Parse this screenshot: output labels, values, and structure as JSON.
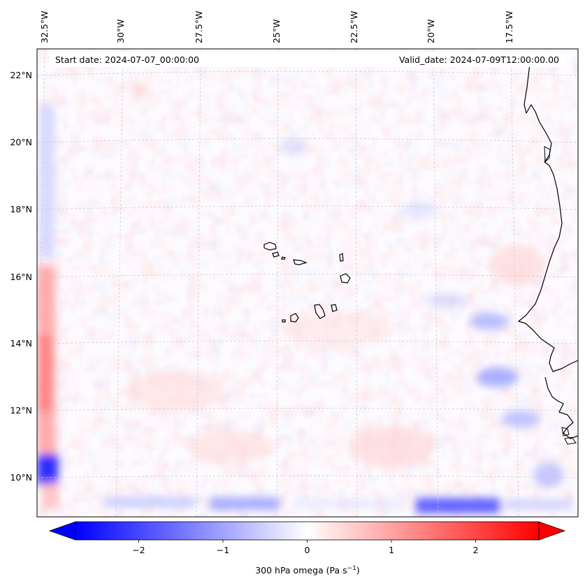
{
  "map": {
    "start_date": "Start date: 2024-07-07_00:00:00",
    "valid_date": "Valid_date: 2024-07-09T12:00:00.00",
    "lon_labels": [
      "32.5°W",
      "30°W",
      "27.5°W",
      "25°W",
      "22.5°W",
      "20°W",
      "17.5°W"
    ],
    "lat_labels": [
      "22°N",
      "20°N",
      "18°N",
      "16°N",
      "14°N",
      "12°N",
      "10°N"
    ],
    "colormap": "bwr",
    "colors": {
      "neg": "#0000ff",
      "zero": "#ffffff",
      "pos": "#ff0000",
      "coast": "#000000",
      "grid": "#bbbbbb"
    }
  },
  "colorbar": {
    "label": "300 hPa omega (Pa s",
    "label_sup": "−1",
    "label_close": ")",
    "range": [
      -2.75,
      2.75
    ],
    "ticks": [
      {
        "value": -2,
        "label": "−2"
      },
      {
        "value": -1,
        "label": "−1"
      },
      {
        "value": 0,
        "label": "0"
      },
      {
        "value": 1,
        "label": "1"
      },
      {
        "value": 2,
        "label": "2"
      }
    ]
  }
}
